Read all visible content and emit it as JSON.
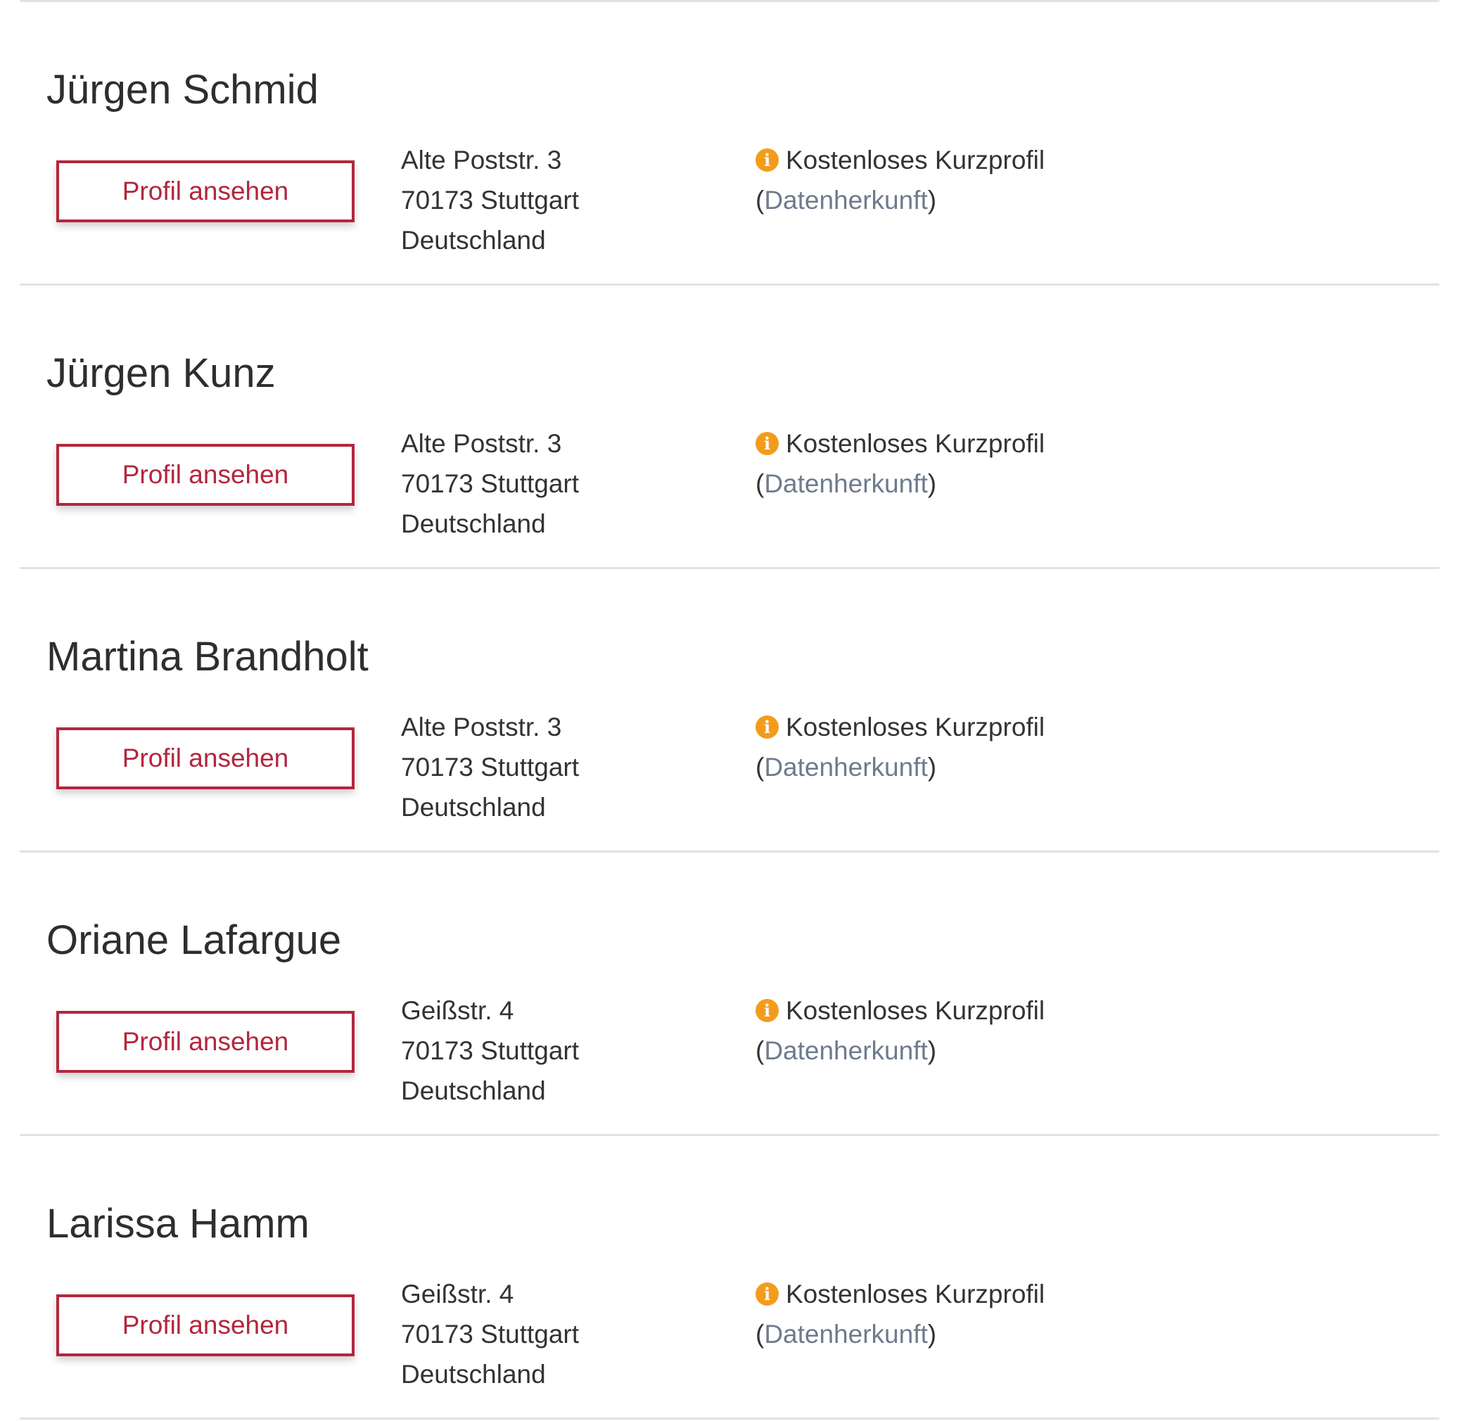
{
  "colors": {
    "accent": "#b3263d",
    "info_icon": "#f39c1b",
    "link": "#6d7b8e"
  },
  "entries": [
    {
      "name": "Jürgen Schmid",
      "button": "Profil ansehen",
      "street": "Alte Poststr. 3",
      "city": "70173 Stuttgart",
      "country": "Deutschland",
      "info": "Kostenloses Kurzprofil",
      "link": "Datenherkunft",
      "icon": "info-icon"
    },
    {
      "name": "Jürgen Kunz",
      "button": "Profil ansehen",
      "street": "Alte Poststr. 3",
      "city": "70173 Stuttgart",
      "country": "Deutschland",
      "info": "Kostenloses Kurzprofil",
      "link": "Datenherkunft",
      "icon": "info-icon"
    },
    {
      "name": "Martina Brandholt",
      "button": "Profil ansehen",
      "street": "Alte Poststr. 3",
      "city": "70173 Stuttgart",
      "country": "Deutschland",
      "info": "Kostenloses Kurzprofil",
      "link": "Datenherkunft",
      "icon": "info-icon"
    },
    {
      "name": "Oriane Lafargue",
      "button": "Profil ansehen",
      "street": "Geißstr. 4",
      "city": "70173 Stuttgart",
      "country": "Deutschland",
      "info": "Kostenloses Kurzprofil",
      "link": "Datenherkunft",
      "icon": "info-icon"
    },
    {
      "name": "Larissa Hamm",
      "button": "Profil ansehen",
      "street": "Geißstr. 4",
      "city": "70173 Stuttgart",
      "country": "Deutschland",
      "info": "Kostenloses Kurzprofil",
      "link": "Datenherkunft",
      "icon": "info-icon"
    }
  ]
}
